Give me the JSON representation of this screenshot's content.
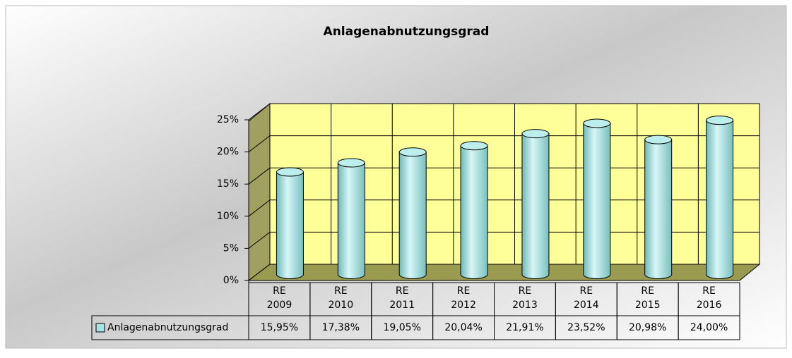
{
  "chart_data": {
    "type": "bar3d",
    "title": "Anlagenabnutzungsgrad",
    "categories": [
      "RE 2009",
      "RE 2010",
      "RE 2011",
      "RE 2012",
      "RE 2013",
      "RE 2014",
      "RE 2015",
      "RE 2016"
    ],
    "series": [
      {
        "name": "Anlagenabnutzungsgrad",
        "color": "#a8e4e4",
        "values": [
          15.95,
          17.38,
          19.05,
          20.04,
          21.91,
          23.52,
          20.98,
          24.0
        ],
        "value_labels": [
          "15,95%",
          "17,38%",
          "19,05%",
          "20,04%",
          "21,91%",
          "23,52%",
          "20,98%",
          "24,00%"
        ]
      }
    ],
    "ylim": [
      0,
      25
    ],
    "yticks": [
      {
        "value": 0,
        "label": "0%"
      },
      {
        "value": 5,
        "label": "5%"
      },
      {
        "value": 10,
        "label": "10%"
      },
      {
        "value": 15,
        "label": "15%"
      },
      {
        "value": 20,
        "label": "20%"
      },
      {
        "value": 25,
        "label": "25%"
      }
    ],
    "grid": true
  }
}
